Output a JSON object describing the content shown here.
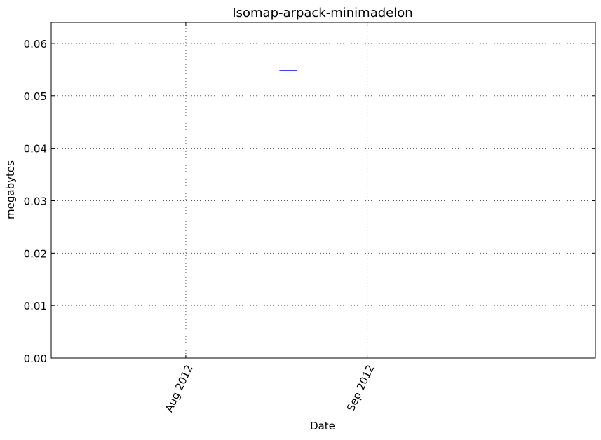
{
  "chart_data": {
    "type": "line",
    "title": "Isomap-arpack-minimadelon",
    "xlabel": "Date",
    "ylabel": "megabytes",
    "x_axis": {
      "kind": "date",
      "range": [
        "2012-07-09",
        "2012-10-10"
      ],
      "ticks": [
        {
          "date": "2012-08-01",
          "label": "Aug 2012"
        },
        {
          "date": "2012-09-01",
          "label": "Sep 2012"
        }
      ]
    },
    "ylim": [
      0.0,
      0.064
    ],
    "y_ticks": [
      {
        "value": 0.0,
        "label": "0.00"
      },
      {
        "value": 0.01,
        "label": "0.01"
      },
      {
        "value": 0.02,
        "label": "0.02"
      },
      {
        "value": 0.03,
        "label": "0.03"
      },
      {
        "value": 0.04,
        "label": "0.04"
      },
      {
        "value": 0.05,
        "label": "0.05"
      },
      {
        "value": 0.06,
        "label": "0.06"
      }
    ],
    "grid": true,
    "series": [
      {
        "color": "#0000ff",
        "points": [
          {
            "x": "2012-08-17",
            "y": 0.0548
          },
          {
            "x": "2012-08-20",
            "y": 0.0548
          }
        ]
      }
    ]
  }
}
